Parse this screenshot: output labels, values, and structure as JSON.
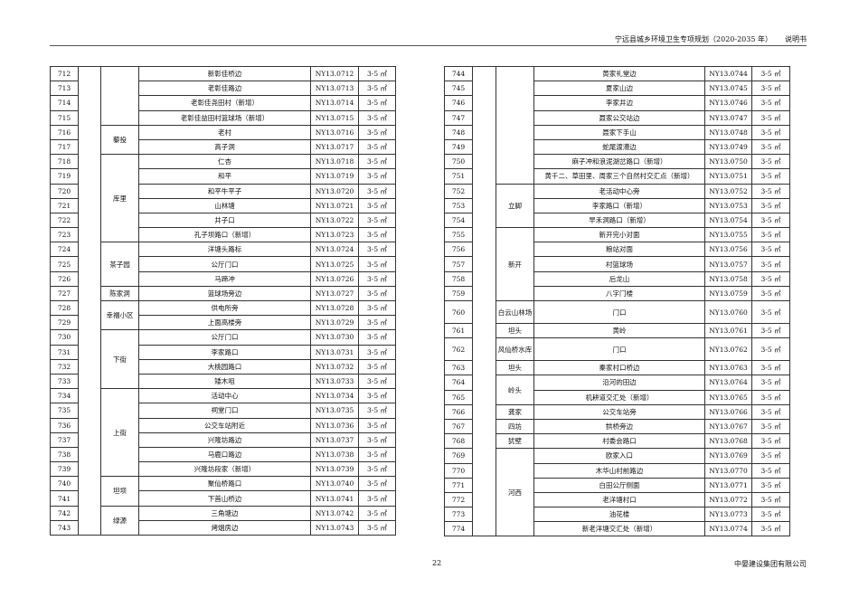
{
  "header": {
    "title": "宁远县城乡环境卫生专项规划（2020-2035 年）",
    "doc_type": "说明书"
  },
  "footer": {
    "page_number": "22",
    "company": "中晏建设集团有限公司"
  },
  "left_table": [
    {
      "village": "",
      "rows": [
        [
          "712",
          "新彰佳桥边",
          "NY13.0712",
          "3-5 ㎡"
        ],
        [
          "713",
          "老彰佳路边",
          "NY13.0713",
          "3-5 ㎡"
        ],
        [
          "714",
          "老彰佳尧田村（新增）",
          "NY13.0714",
          "3-5 ㎡"
        ],
        [
          "715",
          "老彰佳益田村篮球场（新增）",
          "NY13.0715",
          "3-5 ㎡"
        ]
      ]
    },
    {
      "village": "藜投",
      "rows": [
        [
          "716",
          "老村",
          "NY13.0716",
          "3-5 ㎡"
        ],
        [
          "717",
          "高子洞",
          "NY13.0717",
          "3-5 ㎡"
        ]
      ]
    },
    {
      "village": "库里",
      "rows": [
        [
          "718",
          "仁杏",
          "NY13.0718",
          "3-5 ㎡"
        ],
        [
          "719",
          "和平",
          "NY13.0719",
          "3-5 ㎡"
        ],
        [
          "720",
          "和平牛平子",
          "NY13.0720",
          "3-5 ㎡"
        ],
        [
          "721",
          "山林塘",
          "NY13.0721",
          "3-5 ㎡"
        ],
        [
          "722",
          "井子口",
          "NY13.0722",
          "3-5 ㎡"
        ],
        [
          "723",
          "孔子坝路口（新增）",
          "NY13.0723",
          "3-5 ㎡"
        ]
      ]
    },
    {
      "village": "茶子园",
      "rows": [
        [
          "724",
          "洋塘头路标",
          "NY13.0724",
          "3-5 ㎡"
        ],
        [
          "725",
          "公厅门口",
          "NY13.0725",
          "3-5 ㎡"
        ],
        [
          "726",
          "马蹄冲",
          "NY13.0726",
          "3-5 ㎡"
        ]
      ]
    },
    {
      "village": "陈家洞",
      "rows": [
        [
          "727",
          "篮球场旁边",
          "NY13.0727",
          "3-5 ㎡"
        ]
      ]
    },
    {
      "village": "幸福小区",
      "rows": [
        [
          "728",
          "供电所旁",
          "NY13.0728",
          "3-5 ㎡"
        ],
        [
          "729",
          "上面高楼旁",
          "NY13.0729",
          "3-5 ㎡"
        ]
      ]
    },
    {
      "village": "下街",
      "rows": [
        [
          "730",
          "公厅门口",
          "NY13.0730",
          "3-5 ㎡"
        ],
        [
          "731",
          "李家路口",
          "NY13.0731",
          "3-5 ㎡"
        ],
        [
          "732",
          "大桃园路口",
          "NY13.0732",
          "3-5 ㎡"
        ],
        [
          "733",
          "矮木咀",
          "NY13.0733",
          "3-5 ㎡"
        ]
      ]
    },
    {
      "village": "上街",
      "rows": [
        [
          "734",
          "活动中心",
          "NY13.0734",
          "3-5 ㎡"
        ],
        [
          "735",
          "祠堂门口",
          "NY13.0735",
          "3-5 ㎡"
        ],
        [
          "736",
          "公交车站附近",
          "NY13.0736",
          "3-5 ㎡"
        ],
        [
          "737",
          "兴隆坊路边",
          "NY13.0737",
          "3-5 ㎡"
        ],
        [
          "738",
          "马鹿口路边",
          "NY13.0738",
          "3-5 ㎡"
        ],
        [
          "739",
          "兴隆坊段家（新增）",
          "NY13.0739",
          "3-5 ㎡"
        ]
      ]
    },
    {
      "village": "坦坝",
      "rows": [
        [
          "740",
          "聚仙桥路口",
          "NY13.0740",
          "3-5 ㎡"
        ],
        [
          "741",
          "下首山桥边",
          "NY13.0741",
          "3-5 ㎡"
        ]
      ]
    },
    {
      "village": "绿源",
      "rows": [
        [
          "742",
          "三角塘边",
          "NY13.0742",
          "3-5 ㎡"
        ],
        [
          "743",
          "烤烟房边",
          "NY13.0743",
          "3-5 ㎡"
        ]
      ]
    }
  ],
  "right_table": [
    {
      "village": "",
      "rows": [
        [
          "744",
          "黄家礼堂边",
          "NY13.0744",
          "3-5 ㎡"
        ],
        [
          "745",
          "夏家山边",
          "NY13.0745",
          "3-5 ㎡"
        ],
        [
          "746",
          "李家井边",
          "NY13.0746",
          "3-5 ㎡"
        ],
        [
          "747",
          "聂家公交站边",
          "NY13.0747",
          "3-5 ㎡"
        ],
        [
          "748",
          "聂家下手山",
          "NY13.0748",
          "3-5 ㎡"
        ],
        [
          "749",
          "蛇尾渡漕边",
          "NY13.0749",
          "3-5 ㎡"
        ],
        [
          "750",
          "麻子冲和浪泥湖岔路口（新增）",
          "NY13.0750",
          "3-5 ㎡"
        ],
        [
          "751",
          "黄千二、草田里、周家三个自然村交汇点（新增）",
          "NY13.0751",
          "3-5 ㎡"
        ]
      ]
    },
    {
      "village": "立脚",
      "rows": [
        [
          "752",
          "老活动中心旁",
          "NY13.0752",
          "3-5 ㎡"
        ],
        [
          "753",
          "李家路口（新增）",
          "NY13.0753",
          "3-5 ㎡"
        ],
        [
          "754",
          "早禾洞路口（新增）",
          "NY13.0754",
          "3-5 ㎡"
        ]
      ]
    },
    {
      "village": "新开",
      "rows": [
        [
          "755",
          "新开完小对面",
          "NY13.0755",
          "3-5 ㎡"
        ],
        [
          "756",
          "粮站对面",
          "NY13.0756",
          "3-5 ㎡"
        ],
        [
          "757",
          "村篮球场",
          "NY13.0757",
          "3-5 ㎡"
        ],
        [
          "758",
          "后龙山",
          "NY13.0758",
          "3-5 ㎡"
        ],
        [
          "759",
          "八字门楼",
          "NY13.0759",
          "3-5 ㎡"
        ]
      ]
    },
    {
      "village": "白云山林场",
      "tall": true,
      "rows": [
        [
          "760",
          "门口",
          "NY13.0760",
          "3-5 ㎡"
        ]
      ]
    },
    {
      "village": "坦头",
      "rows": [
        [
          "761",
          "黄岭",
          "NY13.0761",
          "3-5 ㎡"
        ]
      ]
    },
    {
      "village": "风仙桥水库",
      "tall": true,
      "rows": [
        [
          "762",
          "门口",
          "NY13.0762",
          "3-5 ㎡"
        ]
      ]
    },
    {
      "village": "坦头",
      "rows": [
        [
          "763",
          "秦家村口桥边",
          "NY13.0763",
          "3-5 ㎡"
        ]
      ]
    },
    {
      "village": "岭头",
      "rows": [
        [
          "764",
          "沿河的田边",
          "NY13.0764",
          "3-5 ㎡"
        ],
        [
          "765",
          "机耕道交汇处（新增）",
          "NY13.0765",
          "3-5 ㎡"
        ]
      ]
    },
    {
      "village": "龚家",
      "rows": [
        [
          "766",
          "公交车站旁",
          "NY13.0766",
          "3-5 ㎡"
        ]
      ]
    },
    {
      "village": "四坊",
      "rows": [
        [
          "767",
          "拱桥旁边",
          "NY13.0767",
          "3-5 ㎡"
        ]
      ]
    },
    {
      "village": "犹壁",
      "rows": [
        [
          "768",
          "村委会路口",
          "NY13.0768",
          "3-5 ㎡"
        ]
      ]
    },
    {
      "village": "河西",
      "rows": [
        [
          "769",
          "欧家入口",
          "NY13.0769",
          "3-5 ㎡"
        ],
        [
          "770",
          "木华山村前路边",
          "NY13.0770",
          "3-5 ㎡"
        ],
        [
          "771",
          "白田公厅侧面",
          "NY13.0771",
          "3-5 ㎡"
        ],
        [
          "772",
          "老洋塘村口",
          "NY13.0772",
          "3-5 ㎡"
        ],
        [
          "773",
          "油花楼",
          "NY13.0773",
          "3-5 ㎡"
        ],
        [
          "774",
          "新老洋塘交汇处（新增）",
          "NY13.0774",
          "3-5 ㎡"
        ]
      ]
    }
  ]
}
